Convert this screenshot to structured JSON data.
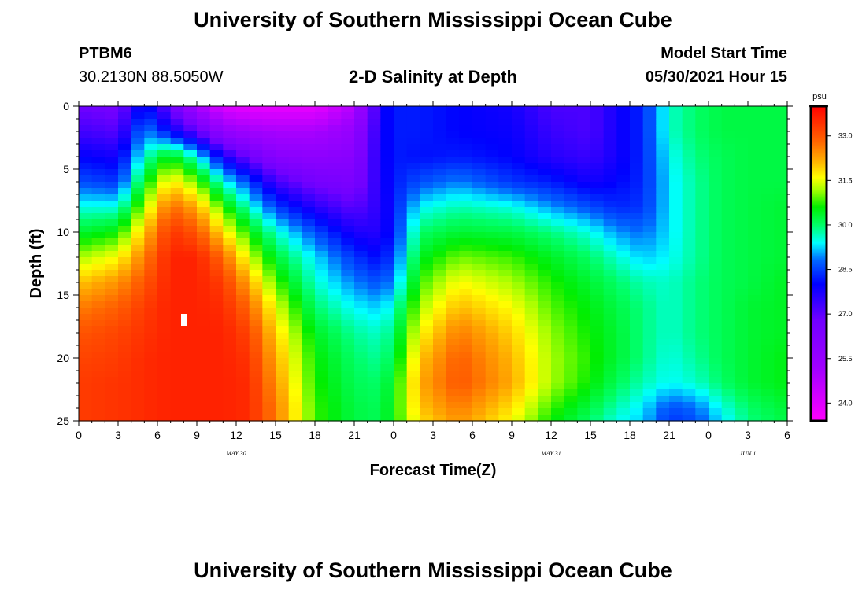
{
  "page": {
    "title_top": "University of Southern Mississippi Ocean Cube",
    "title_bottom": "University of Southern Mississippi Ocean Cube"
  },
  "station": {
    "id": "PTBM6",
    "coords": "30.2130N  88.5050W"
  },
  "model": {
    "start_label": "Model Start Time",
    "start_value": "05/30/2021 Hour 15"
  },
  "chart_data": {
    "type": "heatmap",
    "title": "2-D Salinity at Depth",
    "xlabel": "Forecast Time(Z)",
    "ylabel": "Depth (ft)",
    "x_range_hours": [
      0,
      54
    ],
    "y_range_ft": [
      0,
      25
    ],
    "x_tick_labels": [
      "0",
      "3",
      "6",
      "9",
      "12",
      "15",
      "18",
      "21",
      "0",
      "3",
      "6",
      "9",
      "12",
      "15",
      "18",
      "21",
      "0",
      "3",
      "6"
    ],
    "y_tick_labels": [
      "0",
      "5",
      "10",
      "15",
      "20",
      "25"
    ],
    "date_labels": [
      {
        "label": "MAY  30",
        "hour": 12
      },
      {
        "label": "MAY  31",
        "hour": 36
      },
      {
        "label": "JUN  1",
        "hour": 51
      }
    ],
    "colorbar": {
      "unit": "psu",
      "range": [
        23.4,
        34.0
      ],
      "tick_labels": [
        "24.0",
        "25.5",
        "27.0",
        "28.5",
        "30.0",
        "31.5",
        "33.0"
      ],
      "ticks": [
        24.0,
        25.5,
        27.0,
        28.5,
        30.0,
        31.5,
        33.0
      ]
    },
    "colorscale": [
      {
        "v": 23.4,
        "c": "#ff00ff"
      },
      {
        "v": 25.2,
        "c": "#a000ff"
      },
      {
        "v": 26.8,
        "c": "#7000ff"
      },
      {
        "v": 28.0,
        "c": "#0000ff"
      },
      {
        "v": 28.8,
        "c": "#0066ff"
      },
      {
        "v": 29.4,
        "c": "#00ffff"
      },
      {
        "v": 30.0,
        "c": "#00ff66"
      },
      {
        "v": 30.6,
        "c": "#00ee00"
      },
      {
        "v": 31.2,
        "c": "#aaff00"
      },
      {
        "v": 31.6,
        "c": "#ffff00"
      },
      {
        "v": 32.2,
        "c": "#ffaa00"
      },
      {
        "v": 32.8,
        "c": "#ff6600"
      },
      {
        "v": 33.6,
        "c": "#ff2200"
      },
      {
        "v": 34.0,
        "c": "#ff0000"
      }
    ],
    "salinity_grid": {
      "x_hours": [
        0,
        3,
        5,
        7,
        9,
        11,
        13,
        15,
        18,
        21,
        23,
        24,
        26,
        29,
        33,
        36,
        39,
        41,
        43,
        45,
        47,
        49,
        51,
        54
      ],
      "y_depths_ft": [
        0,
        2,
        4,
        6,
        8,
        10,
        12,
        14,
        16,
        18,
        20,
        22,
        24,
        25
      ],
      "values": [
        [
          26.8,
          26.6,
          28.2,
          26.8,
          25.0,
          24.0,
          23.8,
          23.8,
          23.8,
          24.8,
          27.8,
          28.2,
          28.2,
          28.0,
          27.8,
          27.2,
          27.2,
          27.8,
          28.3,
          29.6,
          30.0,
          30.2,
          30.2,
          30.2
        ],
        [
          27.3,
          27.1,
          29.0,
          28.0,
          27.0,
          25.6,
          25.2,
          25.0,
          25.0,
          25.6,
          27.8,
          28.2,
          28.2,
          28.0,
          27.9,
          27.4,
          27.2,
          27.8,
          28.3,
          29.6,
          30.0,
          30.2,
          30.2,
          30.2
        ],
        [
          28.0,
          27.8,
          29.6,
          30.6,
          29.5,
          27.8,
          26.8,
          26.0,
          25.8,
          26.0,
          27.8,
          28.2,
          28.1,
          28.2,
          28.0,
          27.6,
          27.4,
          27.8,
          28.3,
          29.4,
          29.9,
          30.1,
          30.2,
          30.2
        ],
        [
          28.6,
          28.4,
          30.4,
          31.8,
          31.0,
          29.5,
          28.5,
          27.3,
          26.6,
          26.4,
          27.7,
          28.2,
          28.6,
          28.9,
          28.4,
          28.2,
          27.8,
          28.0,
          28.3,
          29.3,
          29.8,
          30.1,
          30.2,
          30.2
        ],
        [
          29.5,
          29.5,
          31.2,
          32.8,
          32.2,
          30.8,
          29.6,
          28.5,
          27.6,
          27.0,
          27.6,
          28.2,
          29.4,
          29.7,
          29.5,
          29.0,
          28.6,
          28.3,
          28.4,
          29.3,
          29.8,
          30.1,
          30.2,
          30.3
        ],
        [
          30.3,
          30.6,
          32.0,
          33.4,
          33.0,
          31.8,
          30.6,
          29.6,
          28.6,
          27.7,
          27.6,
          28.3,
          30.0,
          30.3,
          30.2,
          29.9,
          29.5,
          29.0,
          28.8,
          29.3,
          29.8,
          30.1,
          30.2,
          30.3
        ],
        [
          31.2,
          31.6,
          32.6,
          33.6,
          33.6,
          32.8,
          31.4,
          30.3,
          29.3,
          28.4,
          28.0,
          28.6,
          30.4,
          31.0,
          30.8,
          30.4,
          30.0,
          29.6,
          29.2,
          29.4,
          29.8,
          30.1,
          30.2,
          30.3
        ],
        [
          32.0,
          32.4,
          33.0,
          33.6,
          33.6,
          33.3,
          32.2,
          30.9,
          29.6,
          28.9,
          28.6,
          29.0,
          30.8,
          31.6,
          31.2,
          30.7,
          30.3,
          30.0,
          29.7,
          29.6,
          29.9,
          30.1,
          30.2,
          30.4
        ],
        [
          32.6,
          32.9,
          33.3,
          33.6,
          33.6,
          33.5,
          32.8,
          31.5,
          30.0,
          29.4,
          29.2,
          29.6,
          31.2,
          32.1,
          31.6,
          30.9,
          30.5,
          30.2,
          29.9,
          29.6,
          29.9,
          30.1,
          30.3,
          30.4
        ],
        [
          33.0,
          33.2,
          33.4,
          33.6,
          33.6,
          33.6,
          33.2,
          31.9,
          30.4,
          29.8,
          29.6,
          30.0,
          31.6,
          32.6,
          31.9,
          31.1,
          30.6,
          30.3,
          29.9,
          29.6,
          29.9,
          30.1,
          30.3,
          30.4
        ],
        [
          33.2,
          33.3,
          33.5,
          33.6,
          33.6,
          33.6,
          33.4,
          32.2,
          30.6,
          30.0,
          29.8,
          30.2,
          32.0,
          32.9,
          32.1,
          31.2,
          30.7,
          30.3,
          29.9,
          29.5,
          29.8,
          30.1,
          30.3,
          30.5
        ],
        [
          33.3,
          33.4,
          33.5,
          33.6,
          33.6,
          33.6,
          33.5,
          32.4,
          30.7,
          30.1,
          30.0,
          30.5,
          32.2,
          33.0,
          32.2,
          31.2,
          30.6,
          30.1,
          29.7,
          29.4,
          29.6,
          30.0,
          30.3,
          30.5
        ],
        [
          33.3,
          33.4,
          33.5,
          33.6,
          33.6,
          33.6,
          33.5,
          32.6,
          30.8,
          30.2,
          30.1,
          30.6,
          32.0,
          32.6,
          31.8,
          30.8,
          30.2,
          29.7,
          29.3,
          28.6,
          28.8,
          29.5,
          30.0,
          30.3
        ],
        [
          33.3,
          33.4,
          33.5,
          33.6,
          33.6,
          33.6,
          33.5,
          32.6,
          30.8,
          30.2,
          30.1,
          30.6,
          31.8,
          32.4,
          31.6,
          30.6,
          30.0,
          29.5,
          29.2,
          28.4,
          28.6,
          29.3,
          29.9,
          30.2
        ]
      ]
    }
  }
}
